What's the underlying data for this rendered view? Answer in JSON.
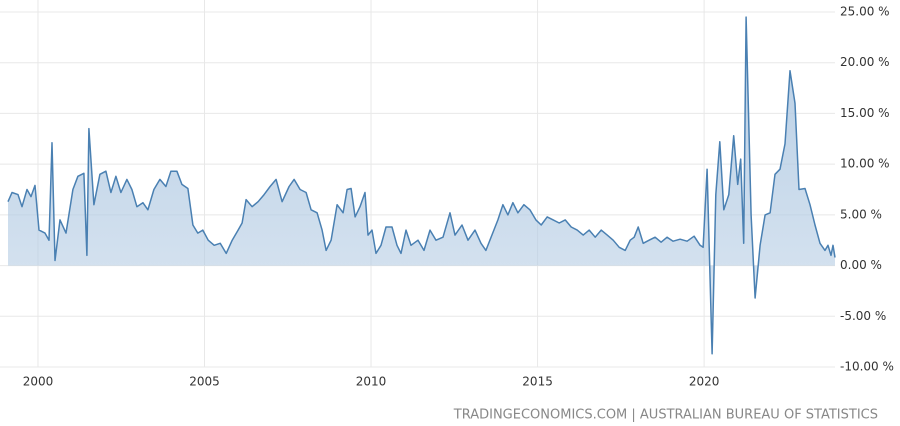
{
  "chart_data": {
    "type": "area",
    "source": "TRADINGECONOMICS.COM | AUSTRALIAN BUREAU OF STATISTICS",
    "color": "#4a80b2",
    "fill": "#b3cbe3",
    "grid": true,
    "xlim": [
      1999.1,
      2023.93
    ],
    "xticks": [
      2000,
      2005,
      2010,
      2015,
      2020
    ],
    "ylim": [
      -10,
      25
    ],
    "yticks": [
      {
        "value": -10,
        "label": "-10.00 %"
      },
      {
        "value": -5,
        "label": "-5.00 %"
      },
      {
        "value": 0,
        "label": "0.00 %"
      },
      {
        "value": 5,
        "label": "5.00 %"
      },
      {
        "value": 10,
        "label": "10.00 %"
      },
      {
        "value": 15,
        "label": "15.00 %"
      },
      {
        "value": 20,
        "label": "20.00 %"
      },
      {
        "value": 25,
        "label": "25.00 %"
      }
    ],
    "x": [
      1999.1,
      1999.22,
      1999.4,
      1999.52,
      1999.67,
      1999.79,
      1999.91,
      2000.03,
      2000.21,
      2000.33,
      2000.42,
      2000.51,
      2000.66,
      2000.84,
      2001.05,
      2001.2,
      2001.38,
      2001.47,
      2001.53,
      2001.68,
      2001.86,
      2002.04,
      2002.19,
      2002.34,
      2002.49,
      2002.67,
      2002.82,
      2002.97,
      2003.15,
      2003.3,
      2003.48,
      2003.66,
      2003.84,
      2003.99,
      2004.17,
      2004.32,
      2004.5,
      2004.65,
      2004.8,
      2004.95,
      2005.11,
      2005.29,
      2005.47,
      2005.65,
      2005.83,
      2006.01,
      2006.13,
      2006.25,
      2006.43,
      2006.61,
      2006.79,
      2006.97,
      2007.15,
      2007.33,
      2007.54,
      2007.69,
      2007.87,
      2008.05,
      2008.2,
      2008.38,
      2008.53,
      2008.65,
      2008.8,
      2008.98,
      2009.16,
      2009.28,
      2009.4,
      2009.52,
      2009.67,
      2009.82,
      2009.91,
      2010.03,
      2010.15,
      2010.3,
      2010.45,
      2010.63,
      2010.78,
      2010.9,
      2011.05,
      2011.2,
      2011.41,
      2011.59,
      2011.77,
      2011.95,
      2012.16,
      2012.37,
      2012.52,
      2012.73,
      2012.91,
      2013.12,
      2013.3,
      2013.45,
      2013.63,
      2013.81,
      2013.96,
      2014.11,
      2014.26,
      2014.41,
      2014.59,
      2014.77,
      2014.95,
      2015.11,
      2015.29,
      2015.47,
      2015.65,
      2015.83,
      2016.01,
      2016.19,
      2016.37,
      2016.55,
      2016.73,
      2016.91,
      2017.09,
      2017.27,
      2017.45,
      2017.63,
      2017.78,
      2017.9,
      2018.02,
      2018.17,
      2018.35,
      2018.53,
      2018.71,
      2018.89,
      2019.07,
      2019.28,
      2019.49,
      2019.7,
      2019.88,
      2019.97,
      2020.09,
      2020.24,
      2020.35,
      2020.47,
      2020.59,
      2020.74,
      2020.89,
      2021.01,
      2021.1,
      2021.19,
      2021.26,
      2021.41,
      2021.53,
      2021.68,
      2021.83,
      2021.98,
      2022.13,
      2022.28,
      2022.43,
      2022.58,
      2022.73,
      2022.85,
      2023.03,
      2023.18,
      2023.33,
      2023.48,
      2023.63,
      2023.72,
      2023.81,
      2023.87,
      2023.93
    ],
    "values": [
      6.3,
      7.2,
      7.0,
      5.8,
      7.5,
      6.8,
      7.9,
      3.5,
      3.2,
      2.5,
      12.1,
      0.5,
      4.5,
      3.2,
      7.5,
      8.8,
      9.1,
      1.0,
      13.5,
      6.0,
      9.0,
      9.3,
      7.2,
      8.8,
      7.2,
      8.5,
      7.5,
      5.8,
      6.2,
      5.5,
      7.5,
      8.5,
      7.8,
      9.3,
      9.3,
      8.0,
      7.6,
      4.0,
      3.2,
      3.5,
      2.5,
      2.0,
      2.2,
      1.2,
      2.5,
      3.5,
      4.2,
      6.5,
      5.8,
      6.3,
      7.0,
      7.8,
      8.5,
      6.3,
      7.8,
      8.5,
      7.5,
      7.2,
      5.5,
      5.2,
      3.5,
      1.5,
      2.5,
      6.0,
      5.2,
      7.5,
      7.6,
      4.8,
      5.8,
      7.2,
      3.0,
      3.5,
      1.2,
      2.0,
      3.8,
      3.8,
      2.0,
      1.2,
      3.5,
      2.0,
      2.5,
      1.5,
      3.5,
      2.5,
      2.8,
      5.2,
      3.0,
      4.0,
      2.5,
      3.5,
      2.2,
      1.5,
      3.0,
      4.5,
      6.0,
      5.0,
      6.2,
      5.2,
      6.0,
      5.5,
      4.5,
      4.0,
      4.8,
      4.5,
      4.2,
      4.5,
      3.8,
      3.5,
      3.0,
      3.5,
      2.8,
      3.5,
      3.0,
      2.5,
      1.8,
      1.5,
      2.5,
      2.8,
      3.8,
      2.2,
      2.5,
      2.8,
      2.3,
      2.8,
      2.4,
      2.6,
      2.4,
      2.9,
      2.0,
      1.8,
      9.5,
      -8.7,
      7.0,
      12.2,
      5.5,
      7.0,
      12.8,
      8.0,
      10.5,
      2.2,
      24.5,
      5.0,
      -3.2,
      2.0,
      5.0,
      5.2,
      9.0,
      9.5,
      12.0,
      19.2,
      16.0,
      7.5,
      7.6,
      6.0,
      4.0,
      2.2,
      1.5,
      2.0,
      1.0,
      2.0,
      0.8
    ]
  }
}
